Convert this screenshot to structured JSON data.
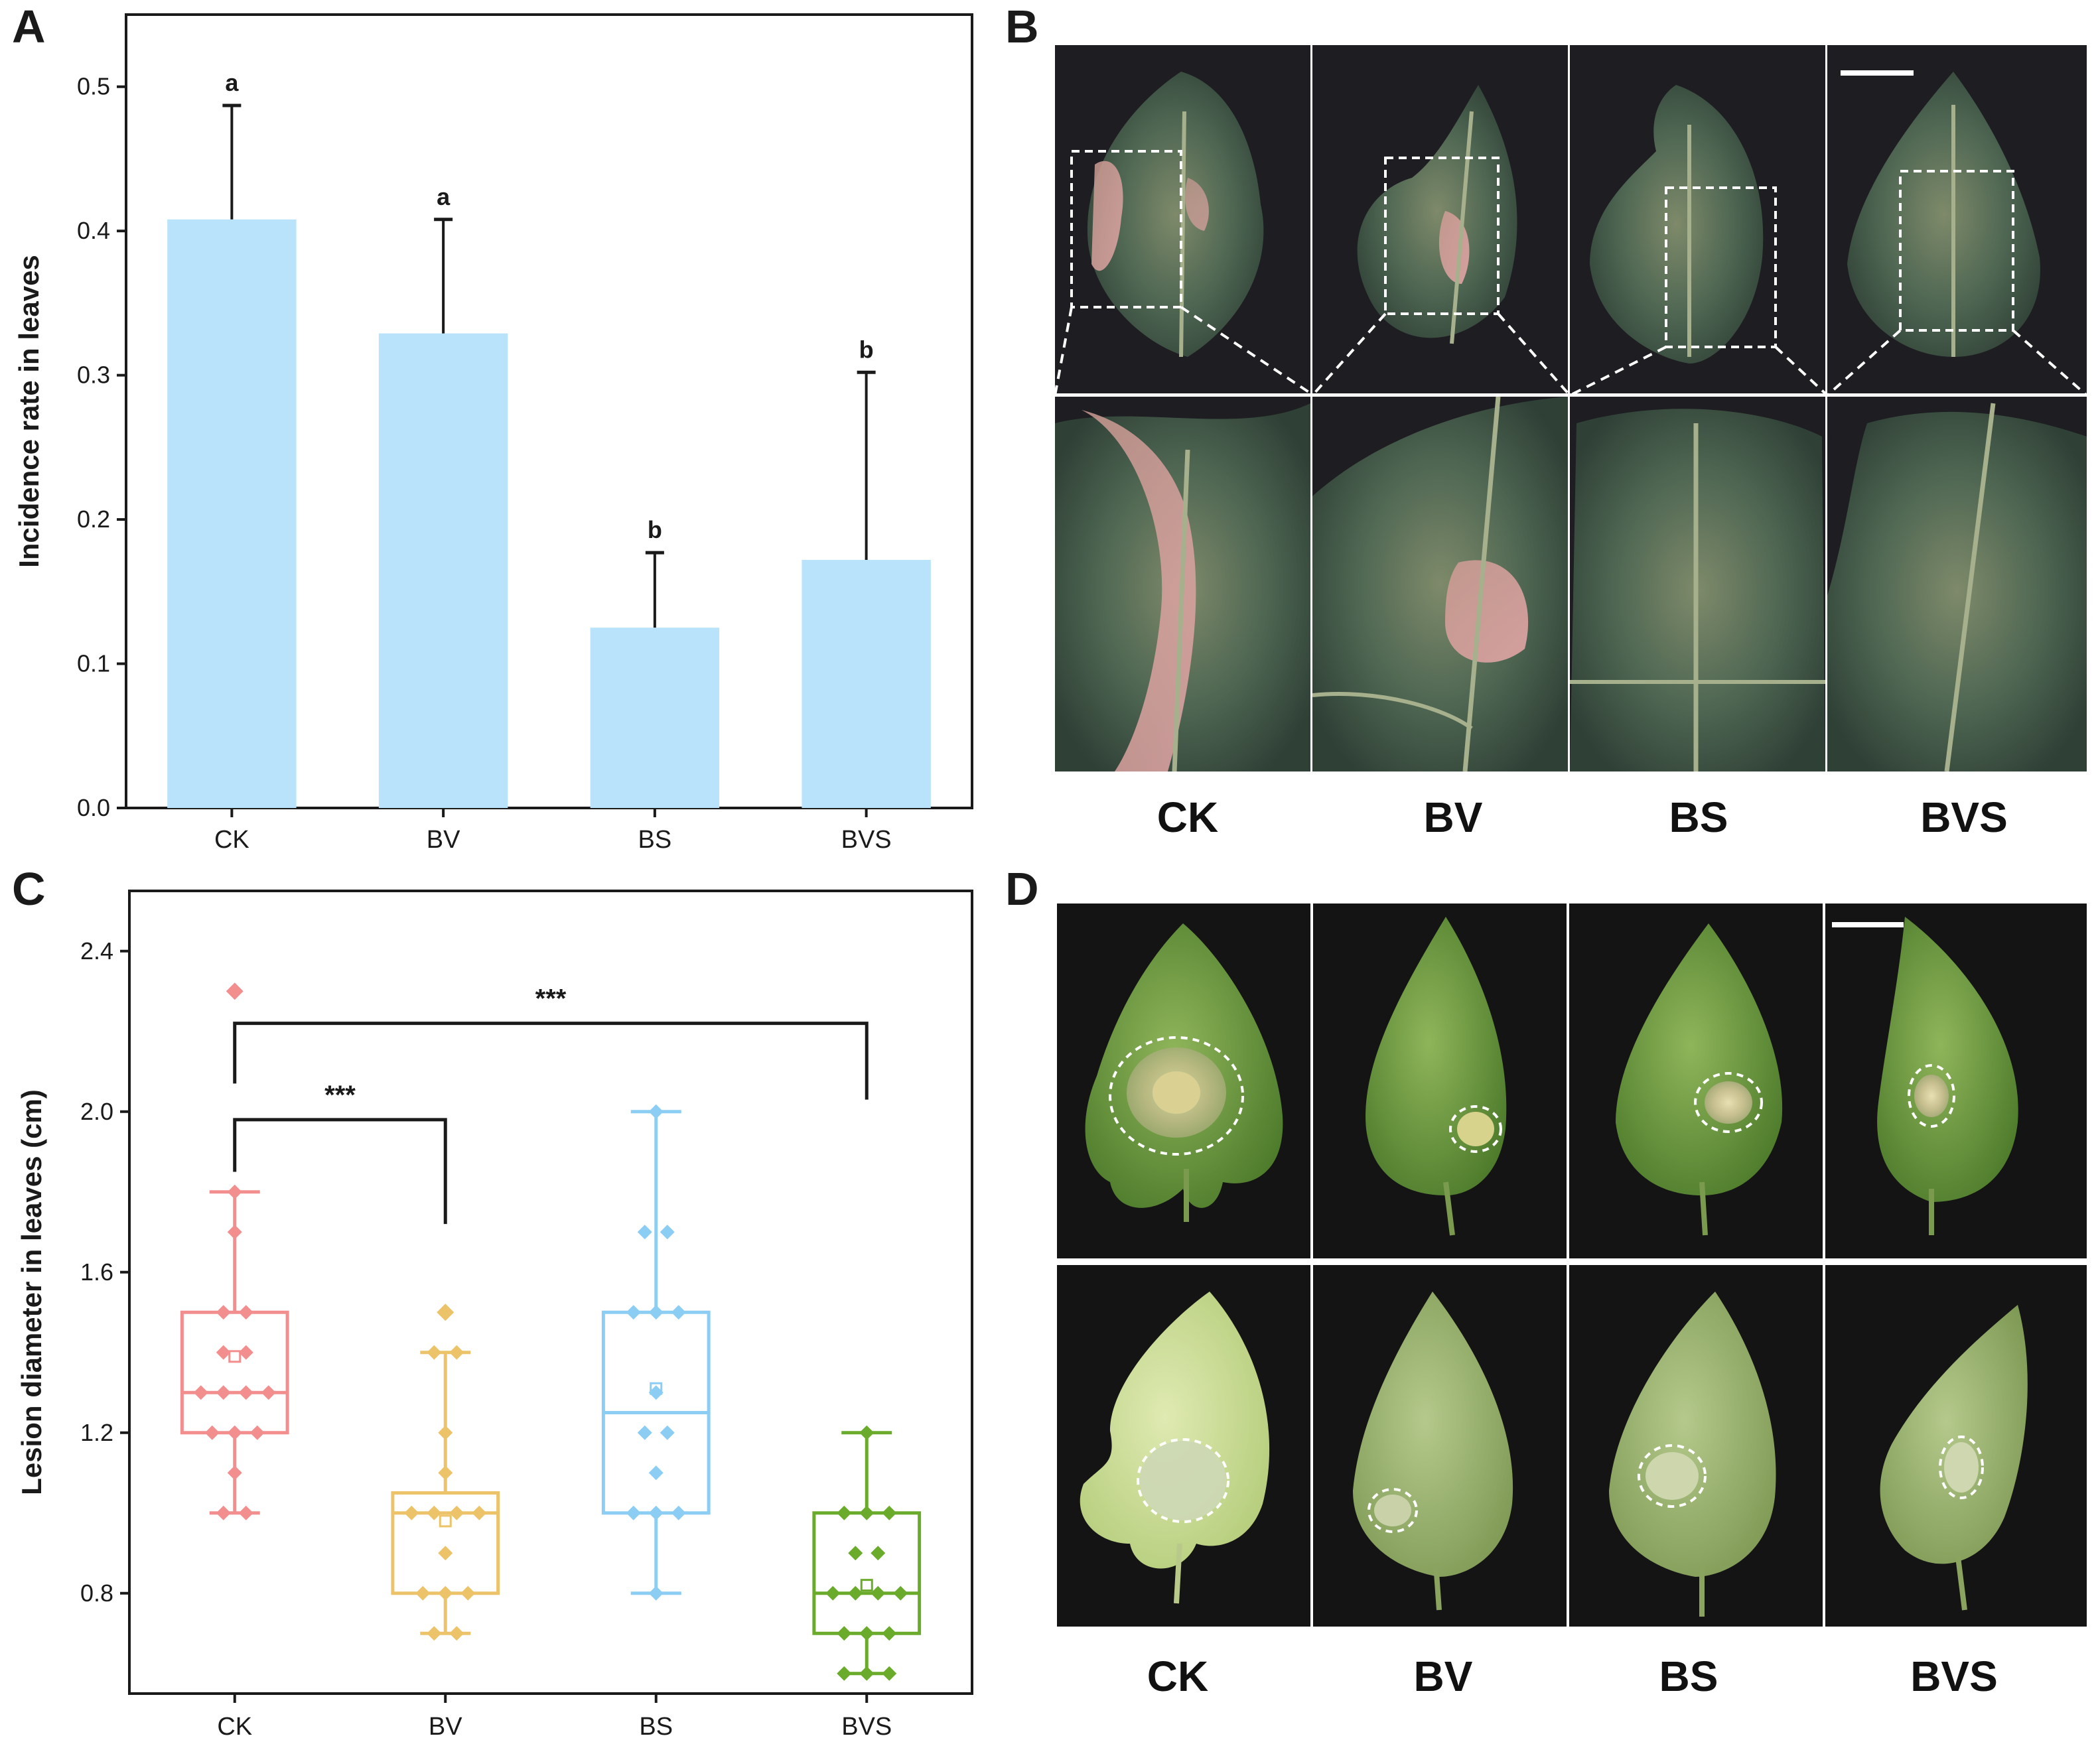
{
  "panels": {
    "a": "A",
    "b": "B",
    "c": "C",
    "d": "D"
  },
  "chart_data": [
    {
      "type": "bar",
      "panel": "A",
      "categories": [
        "CK",
        "BV",
        "BS",
        "BVS"
      ],
      "values": [
        0.408,
        0.329,
        0.125,
        0.172
      ],
      "errors": [
        0.079,
        0.079,
        0.052,
        0.13
      ],
      "significance": [
        "a",
        "a",
        "b",
        "b"
      ],
      "ylabel": "Incidence rate in leaves",
      "xlabel": "",
      "ylim": [
        0.0,
        0.55
      ],
      "yticks": [
        0.0,
        0.1,
        0.2,
        0.3,
        0.4,
        0.5
      ],
      "ytick_labels": [
        "0.0",
        "0.1",
        "0.2",
        "0.3",
        "0.4",
        "0.5"
      ],
      "bar_color": "#b9e3fb"
    },
    {
      "type": "box",
      "panel": "C",
      "categories": [
        "CK",
        "BV",
        "BS",
        "BVS"
      ],
      "ylabel": "Lesion diameter in leaves (cm)",
      "ylim": [
        0.55,
        2.55
      ],
      "yticks": [
        0.8,
        1.2,
        1.6,
        2.0,
        2.4
      ],
      "ytick_labels": [
        "0.8",
        "1.2",
        "1.6",
        "2.0",
        "2.4"
      ],
      "colors": [
        "#f28e8e",
        "#edc36a",
        "#8ccdf4",
        "#6aab2c"
      ],
      "boxes": [
        {
          "whisker_low": 1.0,
          "q1": 1.2,
          "median": 1.3,
          "q3": 1.5,
          "whisker_high": 1.8,
          "mean": 1.39,
          "outliers": [
            2.3
          ]
        },
        {
          "whisker_low": 0.7,
          "q1": 0.8,
          "median": 1.0,
          "q3": 1.05,
          "whisker_high": 1.4,
          "mean": 0.98,
          "outliers": [
            1.5
          ]
        },
        {
          "whisker_low": 0.8,
          "q1": 1.0,
          "median": 1.25,
          "q3": 1.5,
          "whisker_high": 2.0,
          "mean": 1.31,
          "outliers": []
        },
        {
          "whisker_low": 0.6,
          "q1": 0.7,
          "median": 0.8,
          "q3": 1.0,
          "whisker_high": 1.2,
          "mean": 0.82,
          "outliers": []
        }
      ],
      "points": [
        [
          1.8,
          1.7,
          1.5,
          1.5,
          1.4,
          1.4,
          1.3,
          1.3,
          1.3,
          1.3,
          1.2,
          1.2,
          1.2,
          1.1,
          1.0,
          1.0
        ],
        [
          1.5,
          1.4,
          1.4,
          1.2,
          1.1,
          1.0,
          1.0,
          1.0,
          1.0,
          0.9,
          0.8,
          0.8,
          0.8,
          0.7,
          0.7
        ],
        [
          2.0,
          1.7,
          1.7,
          1.5,
          1.5,
          1.5,
          1.3,
          1.2,
          1.2,
          1.1,
          1.0,
          1.0,
          1.0,
          0.8
        ],
        [
          1.2,
          1.0,
          1.0,
          1.0,
          0.9,
          0.9,
          0.8,
          0.8,
          0.8,
          0.8,
          0.7,
          0.7,
          0.7,
          0.6,
          0.6,
          0.6
        ]
      ],
      "significance_brackets": [
        {
          "from": "CK",
          "to": "BV",
          "label": "***"
        },
        {
          "from": "CK",
          "to": "BVS",
          "label": "***"
        }
      ]
    }
  ],
  "photo_panels": {
    "b": {
      "labels": [
        "CK",
        "BV",
        "BS",
        "BVS"
      ]
    },
    "d": {
      "labels": [
        "CK",
        "BV",
        "BS",
        "BVS"
      ]
    }
  }
}
